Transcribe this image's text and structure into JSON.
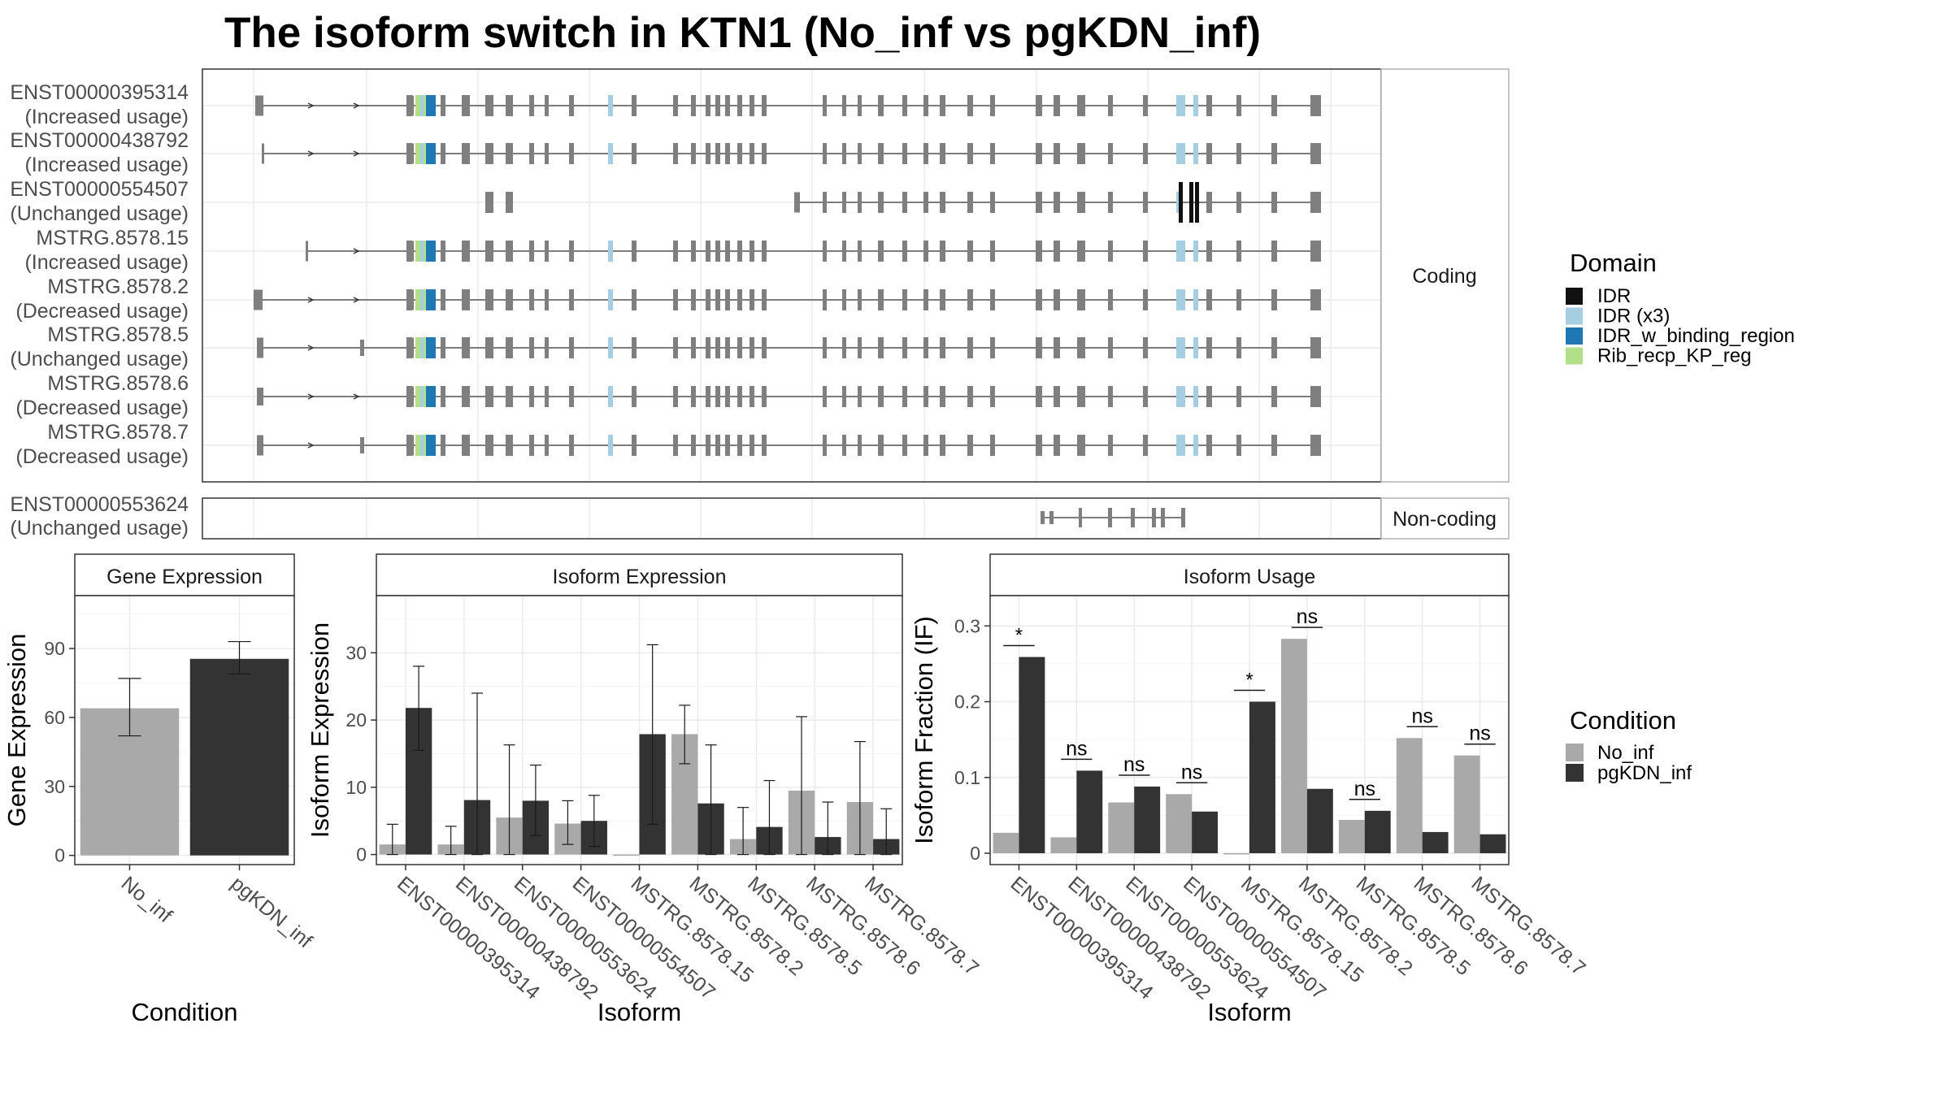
{
  "title": "The isoform switch in KTN1 (No_inf vs pgKDN_inf)",
  "colors": {
    "IDR": "#111111",
    "IDR (x3)": "#a6cee3",
    "IDR_w_binding_region": "#1f78b4",
    "Rib_recp_KP_reg": "#b2df8a",
    "exon": "#7f7f7f",
    "No_inf": "#a9a9a9",
    "pgKDN_inf": "#333333"
  },
  "structure": {
    "coding_strip": "Coding",
    "noncoding_strip": "Non-coding",
    "coding": [
      {
        "id": "ENST00000395314",
        "usage": "(Increased usage)"
      },
      {
        "id": "ENST00000438792",
        "usage": "(Increased usage)"
      },
      {
        "id": "ENST00000554507",
        "usage": "(Unchanged usage)"
      },
      {
        "id": "MSTRG.8578.15",
        "usage": "(Increased usage)"
      },
      {
        "id": "MSTRG.8578.2",
        "usage": "(Decreased usage)"
      },
      {
        "id": "MSTRG.8578.5",
        "usage": "(Unchanged usage)"
      },
      {
        "id": "MSTRG.8578.6",
        "usage": "(Decreased usage)"
      },
      {
        "id": "MSTRG.8578.7",
        "usage": "(Decreased usage)"
      }
    ],
    "noncoding": [
      {
        "id": "ENST00000553624",
        "usage": "(Unchanged usage)"
      }
    ]
  },
  "legends": {
    "domain_title": "Domain",
    "domain_items": [
      "IDR",
      "IDR (x3)",
      "IDR_w_binding_region",
      "Rib_recp_KP_reg"
    ],
    "condition_title": "Condition",
    "condition_items": [
      "No_inf",
      "pgKDN_inf"
    ]
  },
  "chart_data": [
    {
      "type": "bar",
      "title": "Gene Expression",
      "xlabel": "Condition",
      "ylabel": "Gene Expression",
      "categories": [
        "No_inf",
        "pgKDN_inf"
      ],
      "values": [
        64,
        85.5
      ],
      "errors": [
        [
          52,
          77
        ],
        [
          79,
          93
        ]
      ],
      "yticks": [
        0,
        30,
        60,
        90
      ],
      "ylim": [
        -4,
        113
      ]
    },
    {
      "type": "bar",
      "title": "Isoform Expression",
      "xlabel": "Isoform",
      "ylabel": "Isoform Expression",
      "categories": [
        "ENST00000395314",
        "ENST00000438792",
        "ENST00000553624",
        "ENST00000554507",
        "MSTRG.8578.15",
        "MSTRG.8578.2",
        "MSTRG.8578.5",
        "MSTRG.8578.6",
        "MSTRG.8578.7"
      ],
      "series": [
        {
          "name": "No_inf",
          "values": [
            1.5,
            1.5,
            5.5,
            4.6,
            0,
            17.9,
            2.3,
            9.5,
            7.8
          ],
          "errors": [
            [
              0,
              4.5
            ],
            [
              0,
              4.2
            ],
            [
              0,
              16.3
            ],
            [
              1.5,
              8
            ],
            [
              0,
              0
            ],
            [
              13.5,
              22.2
            ],
            [
              0,
              7
            ],
            [
              0,
              20.5
            ],
            [
              0,
              16.8
            ]
          ]
        },
        {
          "name": "pgKDN_inf",
          "values": [
            21.8,
            8.1,
            8,
            5,
            17.9,
            7.6,
            4.1,
            2.6,
            2.3
          ],
          "errors": [
            [
              15.5,
              28
            ],
            [
              0,
              24
            ],
            [
              2.8,
              13.3
            ],
            [
              1.2,
              8.8
            ],
            [
              4.5,
              31.2
            ],
            [
              0,
              16.3
            ],
            [
              0,
              11
            ],
            [
              0,
              7.8
            ],
            [
              0,
              6.8
            ]
          ]
        }
      ],
      "yticks": [
        0,
        10,
        20,
        30
      ],
      "ylim": [
        -1.5,
        38.5
      ]
    },
    {
      "type": "bar",
      "title": "Isoform Usage",
      "xlabel": "Isoform",
      "ylabel": "Isoform Fraction (IF)",
      "categories": [
        "ENST00000395314",
        "ENST00000438792",
        "ENST00000553624",
        "ENST00000554507",
        "MSTRG.8578.15",
        "MSTRG.8578.2",
        "MSTRG.8578.5",
        "MSTRG.8578.6",
        "MSTRG.8578.7"
      ],
      "series": [
        {
          "name": "No_inf",
          "values": [
            0.027,
            0.021,
            0.067,
            0.078,
            0,
            0.283,
            0.044,
            0.152,
            0.129
          ]
        },
        {
          "name": "pgKDN_inf",
          "values": [
            0.259,
            0.109,
            0.088,
            0.055,
            0.2,
            0.085,
            0.056,
            0.028,
            0.025
          ]
        }
      ],
      "significance": [
        "*",
        "ns",
        "ns",
        "ns",
        "*",
        "ns",
        "ns",
        "ns",
        "ns"
      ],
      "yticks": [
        0.0,
        0.1,
        0.2,
        0.3
      ],
      "ylim": [
        -0.015,
        0.34
      ]
    }
  ]
}
